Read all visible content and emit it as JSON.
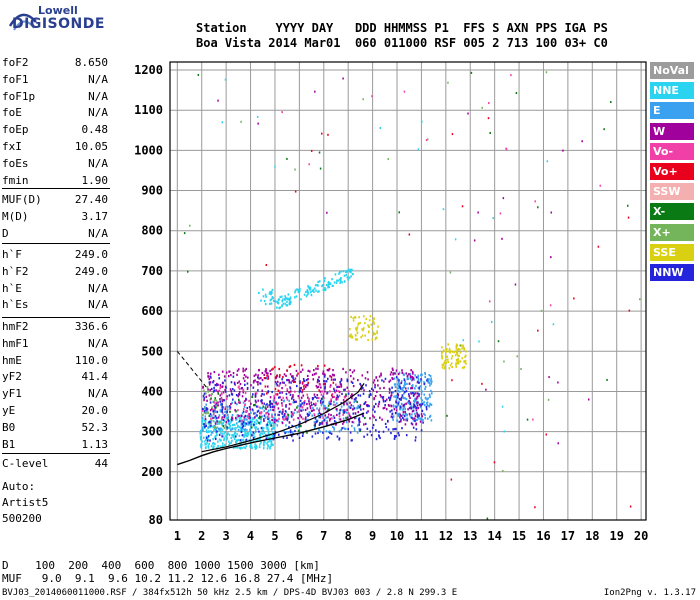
{
  "logo": {
    "line1": "Lowell",
    "line2": "DIGISONDE"
  },
  "header": {
    "row1": "Station    YYYY DAY   DDD HHMMSS P1  FFS S AXN PPS IGA PS",
    "row2": "Boa Vista 2014 Mar01  060 011000 RSF 005 2 713 100 03+ C0"
  },
  "params": {
    "group1": [
      {
        "k": "foF2",
        "v": "8.650"
      },
      {
        "k": "foF1",
        "v": "N/A"
      },
      {
        "k": "foF1p",
        "v": "N/A"
      },
      {
        "k": "foE",
        "v": "N/A"
      },
      {
        "k": "foEp",
        "v": "0.48"
      },
      {
        "k": "fxI",
        "v": "10.05"
      },
      {
        "k": "foEs",
        "v": "N/A"
      },
      {
        "k": "fmin",
        "v": "1.90"
      }
    ],
    "group2": [
      {
        "k": "MUF(D)",
        "v": "27.40"
      },
      {
        "k": "M(D)",
        "v": "3.17"
      },
      {
        "k": "D",
        "v": "N/A"
      }
    ],
    "group3": [
      {
        "k": "h`F",
        "v": "249.0"
      },
      {
        "k": "h`F2",
        "v": "249.0"
      },
      {
        "k": "h`E",
        "v": "N/A"
      },
      {
        "k": "h`Es",
        "v": "N/A"
      }
    ],
    "group4": [
      {
        "k": "hmF2",
        "v": "336.6"
      },
      {
        "k": "hmF1",
        "v": "N/A"
      },
      {
        "k": "hmE",
        "v": "110.0"
      },
      {
        "k": "yF2",
        "v": "41.4"
      },
      {
        "k": "yF1",
        "v": "N/A"
      },
      {
        "k": "yE",
        "v": "20.0"
      },
      {
        "k": "B0",
        "v": "52.3"
      },
      {
        "k": "B1",
        "v": "1.13"
      }
    ],
    "clevel": {
      "k": "C-level",
      "v": "44"
    }
  },
  "auto": {
    "line1": "Auto:",
    "line2": "Artist5",
    "line3": "500200"
  },
  "legend": [
    {
      "label": "NoVal",
      "color": "#9c9c9c"
    },
    {
      "label": "NNE",
      "color": "#2ad4f0"
    },
    {
      "label": "E",
      "color": "#3aa0f0"
    },
    {
      "label": "W",
      "color": "#a0009c"
    },
    {
      "label": "Vo-",
      "color": "#f040a8"
    },
    {
      "label": "Vo+",
      "color": "#e8001c"
    },
    {
      "label": "SSW",
      "color": "#f4b0b0"
    },
    {
      "label": "X-",
      "color": "#0a7a14"
    },
    {
      "label": "X+",
      "color": "#74b45a"
    },
    {
      "label": "SSE",
      "color": "#d8d010"
    },
    {
      "label": "NNW",
      "color": "#2424dc"
    }
  ],
  "dtable": {
    "row1": "D    100  200  400  600  800 1000 1500 3000 [km]",
    "row2": "MUF   9.0  9.1  9.6 10.2 11.2 12.6 16.8 27.4 [MHz]"
  },
  "footer": {
    "left": "BVJ03_2014060011000.RSF / 384fx512h 50 kHz 2.5 km / DPS-4D BVJ03 003 / 2.8 N 299.3 E",
    "right": "Ion2Png v. 1.3.17"
  },
  "chart_data": {
    "type": "scatter",
    "xlim": [
      1,
      20
    ],
    "ylim": [
      80,
      1200
    ],
    "x_ticks": [
      1,
      2,
      3,
      4,
      5,
      6,
      7,
      8,
      9,
      10,
      11,
      12,
      13,
      14,
      15,
      16,
      17,
      18,
      19,
      20
    ],
    "y_ticks": [
      80,
      200,
      300,
      400,
      500,
      600,
      700,
      800,
      900,
      1000,
      1100,
      1200
    ],
    "x_tick_labels": [
      "1",
      "2",
      "3",
      "4",
      "5",
      "6",
      "7",
      "8",
      "9",
      "10",
      "11",
      "12",
      "13",
      "14",
      "15",
      "16",
      "17",
      "18",
      "19",
      "20"
    ],
    "y_tick_labels": [
      "80",
      "200",
      "300",
      "400",
      "500",
      "600",
      "700",
      "800",
      "900",
      "1000",
      "1100",
      "1200"
    ],
    "grid": true,
    "legend_position": "right",
    "series": [
      {
        "name": "NNE",
        "color": "#2ad4f0",
        "clusters": [
          {
            "x": [
              1.9,
              5.0
            ],
            "y": [
              260,
              340
            ],
            "n": 380
          },
          {
            "x": [
              5.0,
              8.2
            ],
            "y": [
              620,
              700
            ],
            "n": 140,
            "slope": 1
          },
          {
            "x": [
              4.2,
              5.0
            ],
            "y": [
              620,
              660
            ],
            "n": 25
          }
        ]
      },
      {
        "name": "E",
        "color": "#3aa0f0",
        "clusters": [
          {
            "x": [
              9.8,
              11.4
            ],
            "y": [
              330,
              450
            ],
            "n": 220
          },
          {
            "x": [
              2.0,
              8.5
            ],
            "y": [
              300,
              380
            ],
            "n": 250
          }
        ]
      },
      {
        "name": "W",
        "color": "#a0009c",
        "clusters": [
          {
            "x": [
              2.0,
              11.0
            ],
            "y": [
              320,
              460
            ],
            "n": 520
          }
        ]
      },
      {
        "name": "Vo-",
        "color": "#f040a8",
        "clusters": [
          {
            "x": [
              2.0,
              8.0
            ],
            "y": [
              330,
              420
            ],
            "n": 120
          }
        ]
      },
      {
        "name": "Vo+",
        "color": "#e8001c",
        "clusters": [
          {
            "x": [
              4.5,
              7.5
            ],
            "y": [
              390,
              470
            ],
            "n": 40
          }
        ]
      },
      {
        "name": "X-",
        "color": "#0a7a14",
        "clusters": [
          {
            "x": [
              2.0,
              9.0
            ],
            "y": [
              300,
              400
            ],
            "n": 40
          }
        ]
      },
      {
        "name": "X+",
        "color": "#74b45a",
        "clusters": [
          {
            "x": [
              2.0,
              3.0
            ],
            "y": [
              300,
              420
            ],
            "n": 30
          }
        ]
      },
      {
        "name": "SSE",
        "color": "#d8d010",
        "clusters": [
          {
            "x": [
              11.8,
              12.8
            ],
            "y": [
              460,
              520
            ],
            "n": 90
          },
          {
            "x": [
              8.0,
              9.2
            ],
            "y": [
              530,
              590
            ],
            "n": 60
          }
        ]
      },
      {
        "name": "NNW",
        "color": "#2424dc",
        "clusters": [
          {
            "x": [
              2.0,
              11.2
            ],
            "y": [
              280,
              440
            ],
            "n": 420
          }
        ]
      }
    ],
    "profile": {
      "x": [
        1.0,
        1.5,
        2.0,
        2.5,
        3.0,
        4.0,
        5.0,
        6.0,
        7.0,
        8.0,
        8.65
      ],
      "y": [
        218,
        228,
        240,
        250,
        258,
        272,
        284,
        296,
        312,
        330,
        346
      ]
    },
    "profile2": {
      "x": [
        2.0,
        3.0,
        4.0,
        5.0,
        6.0,
        7.0,
        7.8,
        8.4,
        8.65
      ],
      "y": [
        250,
        262,
        278,
        296,
        318,
        345,
        372,
        398,
        420
      ]
    },
    "dashed": {
      "x": [
        1.0,
        1.4,
        1.8,
        2.2
      ],
      "y": [
        500,
        470,
        440,
        410
      ]
    }
  }
}
